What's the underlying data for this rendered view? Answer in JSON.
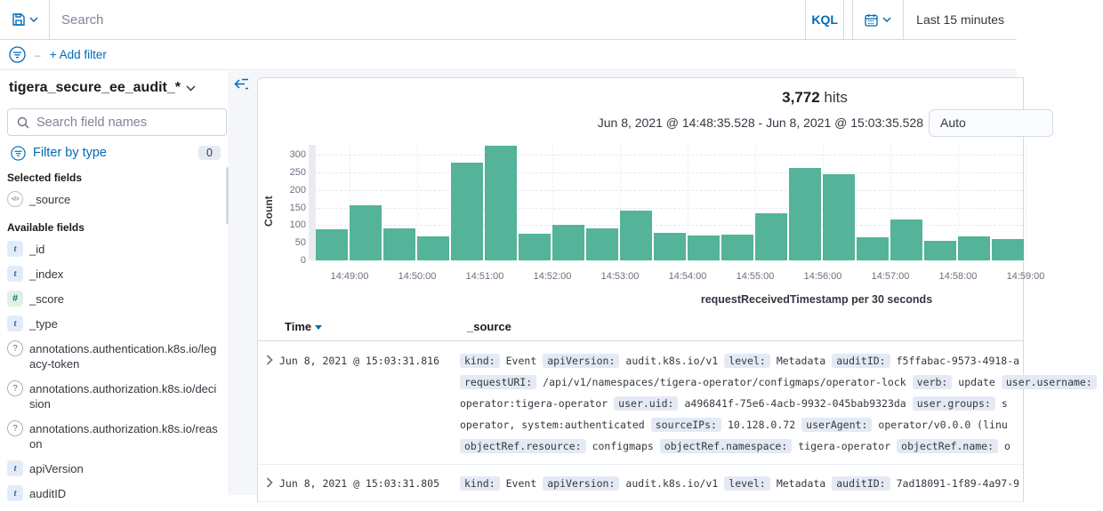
{
  "topbar": {
    "search_placeholder": "Search",
    "kql_label": "KQL",
    "time_range_label": "Last 15 minutes"
  },
  "filter_bar": {
    "dash": "–",
    "add_filter_label": "+ Add filter"
  },
  "sidebar": {
    "index_pattern": "tigera_secure_ee_audit_*",
    "field_search_placeholder": "Search field names",
    "filter_by_type_label": "Filter by type",
    "filter_count": "0",
    "selected_fields_label": "Selected fields",
    "available_fields_label": "Available fields",
    "type_glyphs": {
      "t": "t",
      "number": "#",
      "question": "?",
      "source": "</>"
    },
    "selected_fields": [
      {
        "name": "_source",
        "type": "source"
      }
    ],
    "available_fields": [
      {
        "name": "_id",
        "type": "t"
      },
      {
        "name": "_index",
        "type": "t"
      },
      {
        "name": "_score",
        "type": "number"
      },
      {
        "name": "_type",
        "type": "t"
      },
      {
        "name": "annotations.authentication.k8s.io/legacy-token",
        "type": "question"
      },
      {
        "name": "annotations.authorization.k8s.io/decision",
        "type": "question"
      },
      {
        "name": "annotations.authorization.k8s.io/reason",
        "type": "question"
      },
      {
        "name": "apiVersion",
        "type": "t"
      },
      {
        "name": "auditID",
        "type": "t"
      }
    ]
  },
  "results_header": {
    "hits_count": "3,772",
    "hits_label": "hits",
    "time_range_display": "Jun 8, 2021 @ 14:48:35.528 - Jun 8, 2021 @ 15:03:35.528",
    "interval_selected": "Auto"
  },
  "chart_data": {
    "type": "bar",
    "title": "3,772 hits",
    "xlabel": "requestReceivedTimestamp per 30 seconds",
    "ylabel": "Count",
    "ylim": [
      0,
      340
    ],
    "yticks": [
      0,
      50,
      100,
      150,
      200,
      250,
      300
    ],
    "bar_color": "#54b399",
    "grid": true,
    "legend": false,
    "partial_bucket_at_start": true,
    "categories": [
      "14:48:30",
      "14:49:00",
      "14:49:30",
      "14:50:00",
      "14:50:30",
      "14:51:00",
      "14:51:30",
      "14:52:00",
      "14:52:30",
      "14:53:00",
      "14:53:30",
      "14:54:00",
      "14:54:30",
      "14:55:00",
      "14:55:30",
      "14:56:00",
      "14:56:30",
      "14:57:00",
      "14:57:30",
      "14:58:00",
      "14:58:30"
    ],
    "values": [
      88,
      157,
      92,
      68,
      278,
      325,
      76,
      101,
      91,
      141,
      77,
      70,
      73,
      133,
      261,
      244,
      66,
      117,
      56,
      67,
      60
    ],
    "xticks": [
      "14:49:00",
      "14:50:00",
      "14:51:00",
      "14:52:00",
      "14:53:00",
      "14:54:00",
      "14:55:00",
      "14:56:00",
      "14:57:00",
      "14:58:00",
      "14:59:00"
    ]
  },
  "table": {
    "time_column": "Time",
    "source_column": "_source",
    "rows": [
      {
        "time": "Jun 8, 2021 @ 15:03:31.816",
        "lines": [
          [
            {
              "f": "kind:"
            },
            {
              "t": "Event"
            },
            {
              "f": "apiVersion:"
            },
            {
              "t": "audit.k8s.io/v1"
            },
            {
              "f": "level:"
            },
            {
              "t": "Metadata"
            },
            {
              "f": "auditID:"
            },
            {
              "t": "f5ffabac-9573-4918-a"
            }
          ],
          [
            {
              "f": "requestURI:"
            },
            {
              "t": "/api/v1/namespaces/tigera-operator/configmaps/operator-lock"
            },
            {
              "f": "verb:"
            },
            {
              "t": "update"
            },
            {
              "f": "user.username:"
            }
          ],
          [
            {
              "t": "operator:tigera-operator"
            },
            {
              "f": "user.uid:"
            },
            {
              "t": "a496841f-75e6-4acb-9932-045bab9323da"
            },
            {
              "f": "user.groups:"
            },
            {
              "t": "s"
            }
          ],
          [
            {
              "t": "operator, system:authenticated"
            },
            {
              "f": "sourceIPs:"
            },
            {
              "t": "10.128.0.72"
            },
            {
              "f": "userAgent:"
            },
            {
              "t": "operator/v0.0.0 (linu"
            }
          ],
          [
            {
              "f": "objectRef.resource:"
            },
            {
              "t": "configmaps"
            },
            {
              "f": "objectRef.namespace:"
            },
            {
              "t": "tigera-operator"
            },
            {
              "f": "objectRef.name:"
            },
            {
              "t": "o"
            }
          ]
        ]
      },
      {
        "time": "Jun 8, 2021 @ 15:03:31.805",
        "lines": [
          [
            {
              "f": "kind:"
            },
            {
              "t": "Event"
            },
            {
              "f": "apiVersion:"
            },
            {
              "t": "audit.k8s.io/v1"
            },
            {
              "f": "level:"
            },
            {
              "t": "Metadata"
            },
            {
              "f": "auditID:"
            },
            {
              "t": "7ad18091-1f89-4a97-9"
            }
          ]
        ]
      }
    ]
  }
}
